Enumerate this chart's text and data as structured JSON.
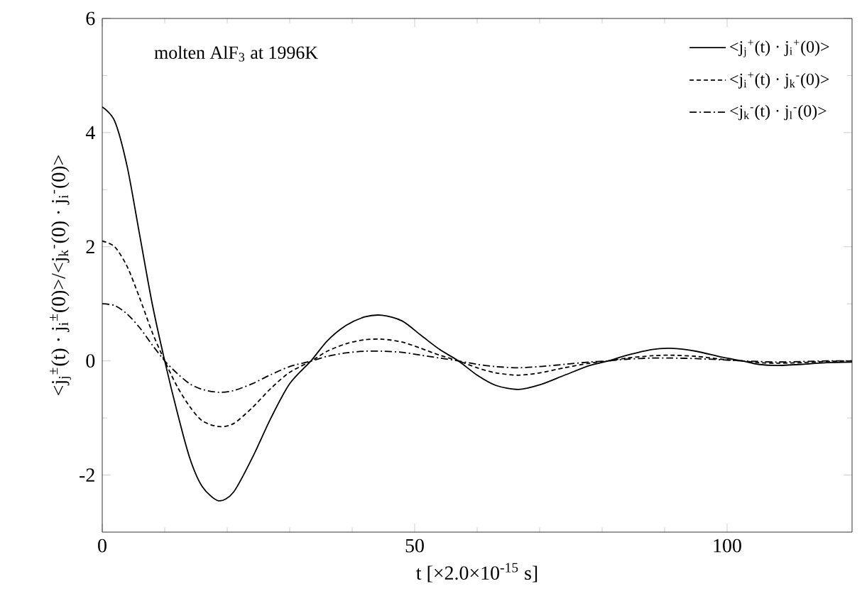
{
  "chart_data": {
    "type": "line",
    "xlabel": "t [×2.0×10$^{-15}$ s]",
    "ylabel": "<j$_{j}$$^{±}$(t) · j$_{i}$$^{±}$(0)>/<j$_{k}$$^{-}$(0) · j$_{i}$$^{-}$(0)>",
    "annotations": [
      "molten AlF$_{3}$ at 1996K"
    ],
    "xlim": [
      0,
      120
    ],
    "xticks": [
      0,
      50,
      100
    ],
    "ylim": [
      -3,
      6
    ],
    "yticks": [
      -2,
      0,
      2,
      4,
      6
    ],
    "legend": "top right",
    "grid": false,
    "series": [
      {
        "name": "<j$_{j}$$^{+}$(t) · j$_{i}$$^{+}$(0)>",
        "color": "#000000",
        "line_style": "solid",
        "x": [
          0,
          2,
          4,
          6,
          8,
          10,
          12,
          14,
          16,
          18.6,
          21,
          24,
          27,
          30,
          33.4,
          36,
          39,
          42,
          44.8,
          48,
          51,
          54,
          57,
          60,
          63,
          66.6,
          70,
          74,
          78,
          81,
          84,
          88,
          91,
          95,
          99,
          102.4,
          105,
          108,
          112,
          116,
          120
        ],
        "values": [
          4.45,
          4.2,
          3.4,
          2.2,
          1.0,
          0,
          -0.9,
          -1.7,
          -2.2,
          -2.45,
          -2.3,
          -1.7,
          -1.0,
          -0.4,
          0,
          0.35,
          0.62,
          0.77,
          0.8,
          0.7,
          0.45,
          0.2,
          0,
          -0.25,
          -0.43,
          -0.5,
          -0.42,
          -0.25,
          -0.08,
          0,
          0.1,
          0.2,
          0.22,
          0.17,
          0.07,
          0,
          -0.06,
          -0.08,
          -0.06,
          -0.03,
          -0.02
        ]
      },
      {
        "name": "<j$_{i}$$^{+}$(t) · j$_{k}$$^{-}$(0)>",
        "color": "#000000",
        "line_style": "dashed",
        "x": [
          0,
          2,
          4,
          6,
          8,
          10,
          12,
          14,
          16,
          18.6,
          21,
          24,
          27,
          30,
          33.5,
          36,
          39,
          42,
          44.8,
          48,
          51,
          54,
          57,
          60,
          63,
          66.6,
          70,
          74,
          78,
          81,
          84,
          88,
          91,
          95,
          99,
          102.4,
          105,
          108,
          112,
          116,
          120
        ],
        "values": [
          2.1,
          2.0,
          1.65,
          1.1,
          0.5,
          0,
          -0.45,
          -0.8,
          -1.05,
          -1.15,
          -1.1,
          -0.82,
          -0.48,
          -0.2,
          0,
          0.17,
          0.3,
          0.37,
          0.38,
          0.33,
          0.22,
          0.1,
          0,
          -0.12,
          -0.21,
          -0.25,
          -0.21,
          -0.12,
          -0.04,
          0,
          0.05,
          0.09,
          0.1,
          0.08,
          0.03,
          0,
          -0.03,
          -0.04,
          -0.03,
          -0.01,
          0
        ]
      },
      {
        "name": "<j$_{k}$$^{-}$(t) · j$_{l}$$^{-}$(0)>",
        "color": "#000000",
        "line_style": "dashdot",
        "x": [
          0,
          2,
          4,
          6,
          8,
          10,
          12,
          14,
          16,
          18.6,
          21,
          24,
          27,
          30,
          33.5,
          36,
          39,
          42,
          44.8,
          48,
          51,
          54,
          57,
          60,
          63,
          66.6,
          70,
          74,
          78,
          81,
          84,
          88,
          91,
          95,
          99,
          102.4,
          105,
          108,
          112,
          116,
          120
        ],
        "values": [
          1.0,
          0.97,
          0.82,
          0.58,
          0.28,
          0,
          -0.22,
          -0.4,
          -0.5,
          -0.55,
          -0.52,
          -0.4,
          -0.24,
          -0.1,
          0,
          0.08,
          0.14,
          0.17,
          0.17,
          0.15,
          0.1,
          0.05,
          0,
          -0.06,
          -0.1,
          -0.12,
          -0.1,
          -0.06,
          -0.02,
          0,
          0.03,
          0.05,
          0.05,
          0.04,
          0.02,
          0,
          -0.01,
          -0.02,
          -0.01,
          0,
          0
        ]
      }
    ]
  }
}
